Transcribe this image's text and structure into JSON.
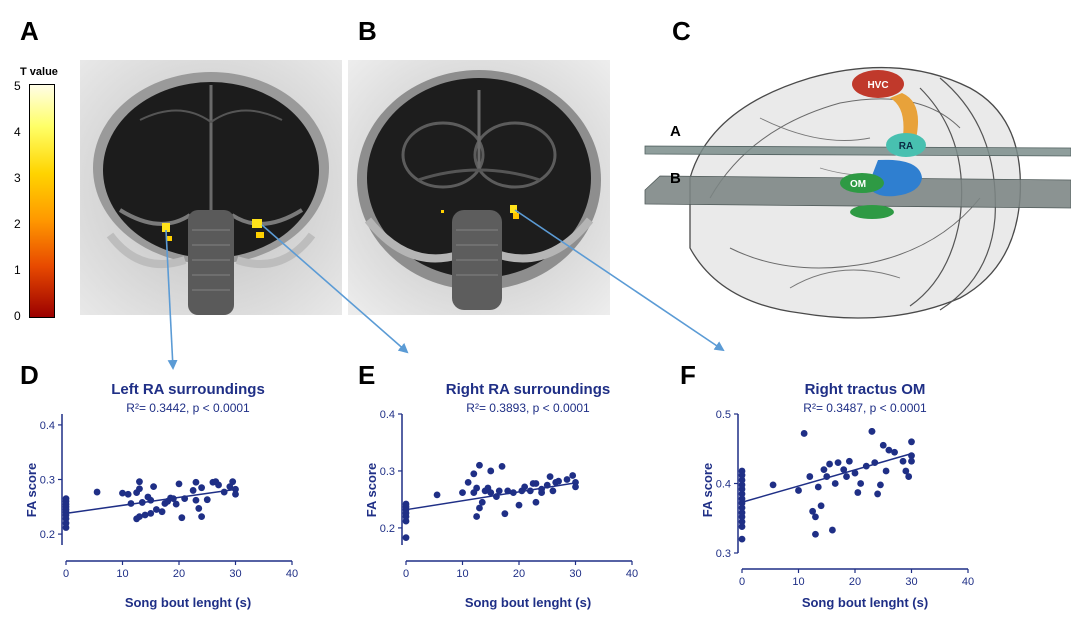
{
  "panels": {
    "a": "A",
    "b": "B",
    "c": "C",
    "d": "D",
    "e": "E",
    "f": "F"
  },
  "colorbar": {
    "title": "T value",
    "ticks": [
      "5",
      "4",
      "3",
      "2",
      "1",
      "0"
    ]
  },
  "model_3d": {
    "plane_labels": [
      "A",
      "B"
    ],
    "regions": [
      "HVC",
      "RA",
      "OM"
    ]
  },
  "colors": {
    "plot_navy": "#1f2f86",
    "arrow_blue": "#5b9bd5",
    "hvc": "#c0392b",
    "ra": "#48c0b0",
    "om": "#2e9a44",
    "tract_blue": "#2f7fd0"
  },
  "chart_data": [
    {
      "type": "scatter",
      "title": "Left RA surroundings",
      "stats": "R²= 0.3442, p < 0.0001",
      "xlabel": "Song bout lenght (s)",
      "ylabel": "FA score",
      "xlim": [
        0,
        40
      ],
      "ylim": [
        0.18,
        0.42
      ],
      "xticks": [
        "0",
        "10",
        "20",
        "30",
        "40"
      ],
      "yticks": [
        "0.2",
        "0.3",
        "0.4"
      ],
      "ytick_values": [
        0.2,
        0.3,
        0.4
      ],
      "fit": {
        "x": [
          0,
          30
        ],
        "y": [
          0.238,
          0.282
        ]
      },
      "points": [
        [
          0,
          0.212
        ],
        [
          0,
          0.22
        ],
        [
          0,
          0.228
        ],
        [
          0,
          0.235
        ],
        [
          0,
          0.24
        ],
        [
          0,
          0.245
        ],
        [
          0,
          0.25
        ],
        [
          0,
          0.255
        ],
        [
          0,
          0.26
        ],
        [
          0,
          0.265
        ],
        [
          5.5,
          0.277
        ],
        [
          10,
          0.275
        ],
        [
          11,
          0.273
        ],
        [
          11.5,
          0.256
        ],
        [
          12.5,
          0.276
        ],
        [
          13,
          0.283
        ],
        [
          13,
          0.296
        ],
        [
          12.5,
          0.228
        ],
        [
          13,
          0.232
        ],
        [
          13.5,
          0.258
        ],
        [
          14,
          0.235
        ],
        [
          14.5,
          0.268
        ],
        [
          15,
          0.238
        ],
        [
          15,
          0.262
        ],
        [
          15.5,
          0.287
        ],
        [
          16,
          0.245
        ],
        [
          17,
          0.241
        ],
        [
          17.5,
          0.256
        ],
        [
          18,
          0.26
        ],
        [
          18.5,
          0.266
        ],
        [
          19,
          0.265
        ],
        [
          19.5,
          0.255
        ],
        [
          20,
          0.292
        ],
        [
          20.5,
          0.23
        ],
        [
          21,
          0.265
        ],
        [
          22.5,
          0.28
        ],
        [
          23,
          0.295
        ],
        [
          23,
          0.262
        ],
        [
          23.5,
          0.247
        ],
        [
          24,
          0.285
        ],
        [
          24,
          0.232
        ],
        [
          25,
          0.263
        ],
        [
          26,
          0.295
        ],
        [
          26.5,
          0.296
        ],
        [
          27,
          0.29
        ],
        [
          28,
          0.277
        ],
        [
          29,
          0.287
        ],
        [
          29.5,
          0.296
        ],
        [
          30,
          0.282
        ],
        [
          30,
          0.273
        ]
      ]
    },
    {
      "type": "scatter",
      "title": "Right RA surroundings",
      "stats": "R²= 0.3893, p < 0.0001",
      "xlabel": "Song bout lenght (s)",
      "ylabel": "FA score",
      "xlim": [
        0,
        40
      ],
      "ylim": [
        0.17,
        0.4
      ],
      "xticks": [
        "0",
        "10",
        "20",
        "30",
        "40"
      ],
      "yticks": [
        "0.2",
        "0.3",
        "0.4"
      ],
      "ytick_values": [
        0.2,
        0.3,
        0.4
      ],
      "fit": {
        "x": [
          0,
          30
        ],
        "y": [
          0.232,
          0.279
        ]
      },
      "points": [
        [
          0,
          0.183
        ],
        [
          0,
          0.212
        ],
        [
          0,
          0.22
        ],
        [
          0,
          0.226
        ],
        [
          0,
          0.232
        ],
        [
          0,
          0.237
        ],
        [
          0,
          0.242
        ],
        [
          5.5,
          0.258
        ],
        [
          10,
          0.262
        ],
        [
          11,
          0.28
        ],
        [
          12,
          0.262
        ],
        [
          12,
          0.295
        ],
        [
          12.5,
          0.27
        ],
        [
          12.5,
          0.22
        ],
        [
          13,
          0.31
        ],
        [
          13,
          0.235
        ],
        [
          13.5,
          0.245
        ],
        [
          14,
          0.265
        ],
        [
          14.5,
          0.27
        ],
        [
          15,
          0.262
        ],
        [
          15,
          0.3
        ],
        [
          16,
          0.255
        ],
        [
          16.5,
          0.265
        ],
        [
          17,
          0.308
        ],
        [
          17.5,
          0.225
        ],
        [
          18,
          0.265
        ],
        [
          19,
          0.262
        ],
        [
          20,
          0.24
        ],
        [
          20.5,
          0.265
        ],
        [
          21,
          0.272
        ],
        [
          22,
          0.265
        ],
        [
          22.5,
          0.278
        ],
        [
          23,
          0.245
        ],
        [
          23,
          0.278
        ],
        [
          24,
          0.262
        ],
        [
          24,
          0.268
        ],
        [
          25,
          0.275
        ],
        [
          25.5,
          0.29
        ],
        [
          26,
          0.265
        ],
        [
          26.5,
          0.28
        ],
        [
          27,
          0.282
        ],
        [
          28.5,
          0.285
        ],
        [
          29.5,
          0.292
        ],
        [
          30,
          0.28
        ],
        [
          30,
          0.272
        ]
      ]
    },
    {
      "type": "scatter",
      "title": "Right tractus OM",
      "stats": "R²= 0.3487, p < 0.0001",
      "xlabel": "Song bout lenght (s)",
      "ylabel": "FA score",
      "xlim": [
        0,
        40
      ],
      "ylim": [
        0.3,
        0.5
      ],
      "xticks": [
        "0",
        "10",
        "20",
        "30",
        "40"
      ],
      "yticks": [
        "0.3",
        "0.4",
        "0.5"
      ],
      "ytick_values": [
        0.3,
        0.4,
        0.5
      ],
      "fit": {
        "x": [
          0,
          30
        ],
        "y": [
          0.373,
          0.443
        ]
      },
      "points": [
        [
          0,
          0.32
        ],
        [
          0,
          0.338
        ],
        [
          0,
          0.345
        ],
        [
          0,
          0.352
        ],
        [
          0,
          0.358
        ],
        [
          0,
          0.365
        ],
        [
          0,
          0.372
        ],
        [
          0,
          0.378
        ],
        [
          0,
          0.385
        ],
        [
          0,
          0.392
        ],
        [
          0,
          0.398
        ],
        [
          0,
          0.405
        ],
        [
          0,
          0.412
        ],
        [
          0,
          0.418
        ],
        [
          5.5,
          0.398
        ],
        [
          10,
          0.39
        ],
        [
          11,
          0.472
        ],
        [
          12,
          0.41
        ],
        [
          12.5,
          0.36
        ],
        [
          13,
          0.352
        ],
        [
          13,
          0.327
        ],
        [
          13.5,
          0.395
        ],
        [
          14,
          0.368
        ],
        [
          14.5,
          0.42
        ],
        [
          15,
          0.41
        ],
        [
          15.5,
          0.428
        ],
        [
          16,
          0.333
        ],
        [
          16.5,
          0.4
        ],
        [
          17,
          0.43
        ],
        [
          18,
          0.42
        ],
        [
          18.5,
          0.41
        ],
        [
          19,
          0.432
        ],
        [
          20,
          0.415
        ],
        [
          20.5,
          0.387
        ],
        [
          21,
          0.4
        ],
        [
          22,
          0.425
        ],
        [
          23,
          0.475
        ],
        [
          23,
          0.475
        ],
        [
          23.5,
          0.43
        ],
        [
          24,
          0.385
        ],
        [
          24.5,
          0.398
        ],
        [
          25,
          0.455
        ],
        [
          25.5,
          0.418
        ],
        [
          26,
          0.448
        ],
        [
          27,
          0.445
        ],
        [
          28.5,
          0.432
        ],
        [
          29,
          0.418
        ],
        [
          29.5,
          0.41
        ],
        [
          30,
          0.46
        ],
        [
          30,
          0.44
        ],
        [
          30,
          0.432
        ]
      ]
    }
  ]
}
